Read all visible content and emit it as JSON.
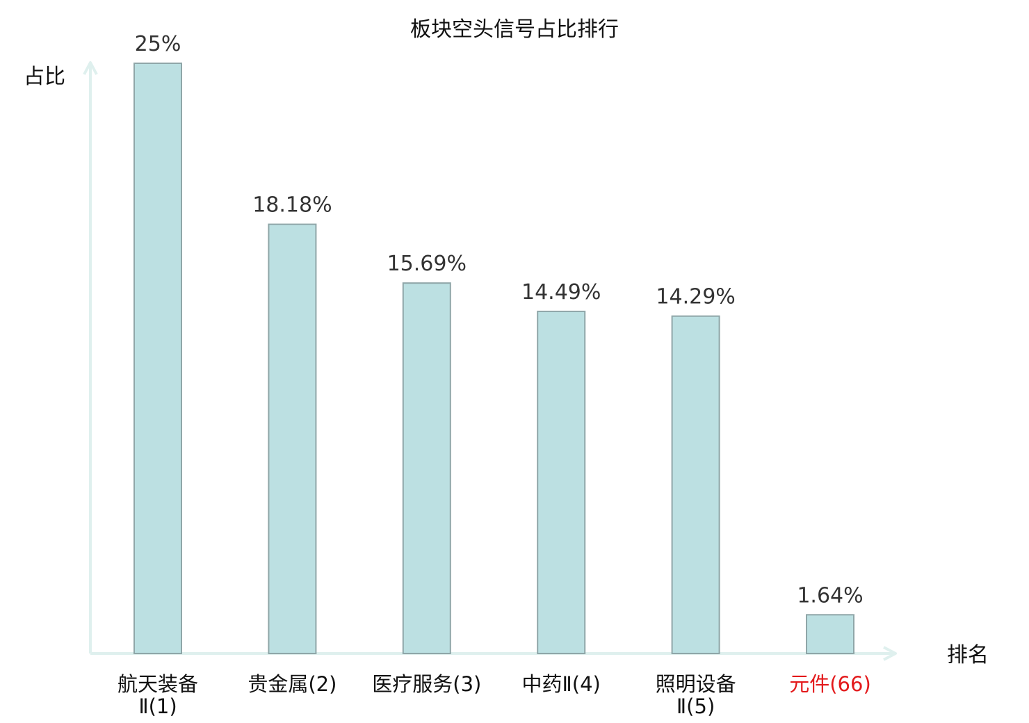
{
  "chart_data": {
    "type": "bar",
    "title": "板块空头信号占比排行",
    "ylabel": "占比",
    "xlabel": "排名",
    "categories": [
      [
        "航天装备",
        "Ⅱ(1)"
      ],
      [
        "贵金属(2)"
      ],
      [
        "医疗服务(3)"
      ],
      [
        "中药Ⅱ(4)"
      ],
      [
        "照明设备",
        "Ⅱ(5)"
      ],
      [
        "元件(66)"
      ]
    ],
    "values": [
      25,
      18.18,
      15.69,
      14.49,
      14.29,
      1.64
    ],
    "value_labels": [
      "25%",
      "18.18%",
      "15.69%",
      "14.49%",
      "14.29%",
      "1.64%"
    ],
    "highlight_index": 5,
    "ylim": [
      0,
      25
    ],
    "grid": false,
    "legend": "none"
  },
  "colors": {
    "bar_fill": "#bce0e2",
    "bar_stroke": "#8fa6a8",
    "axis": "#dff0ee",
    "highlight_text": "#e31a1c",
    "text": "#111111",
    "value_text": "#333333"
  }
}
